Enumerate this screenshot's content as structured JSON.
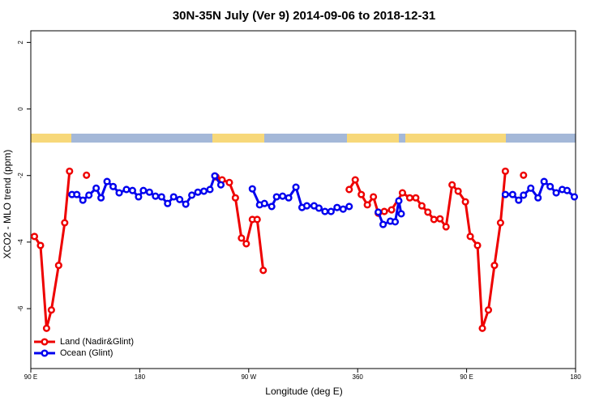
{
  "chart_data": {
    "type": "line",
    "title": "30N-35N July (Ver 9)   2014-09-06 to 2018-12-31",
    "x_label": "Longitude (deg E)",
    "y_label": "XCO2 - MLO trend (ppm)",
    "xlim": [
      90,
      540
    ],
    "ylim": [
      -7.8,
      2.35
    ],
    "xticks": [
      {
        "value": 90,
        "label": "90 E"
      },
      180,
      {
        "value": 270,
        "label": "90 W"
      },
      360,
      {
        "value": 450,
        "label": "90 E"
      },
      {
        "value": 540,
        "label": "180"
      }
    ],
    "yticks": [
      -6,
      -4,
      -2,
      0,
      2
    ],
    "legend": "bottom-left",
    "series": [
      {
        "name": "Land (Nadir&Glint)",
        "color": "#ee0000",
        "x": [
          93,
          98,
          103,
          107,
          113,
          118,
          122,
          null,
          136,
          null,
          243,
          248,
          254,
          259,
          264,
          268,
          273,
          277,
          282,
          null,
          353,
          358,
          363,
          368,
          373,
          377,
          382,
          388,
          397,
          403,
          408,
          413,
          418,
          423,
          428,
          433,
          438,
          443,
          449,
          453,
          459,
          463,
          468,
          473,
          478,
          482,
          null,
          497
        ],
        "values": [
          -3.83,
          -4.1,
          -6.59,
          -6.04,
          -4.7,
          -3.42,
          -1.87,
          null,
          -1.99,
          null,
          -2.04,
          -2.13,
          -2.21,
          -2.67,
          -3.88,
          -4.05,
          -3.32,
          -3.32,
          -4.85,
          null,
          -2.42,
          -2.13,
          -2.57,
          -2.88,
          -2.64,
          -3.13,
          -3.08,
          -3.03,
          -2.52,
          -2.67,
          -2.67,
          -2.91,
          -3.1,
          -3.32,
          -3.3,
          -3.54,
          -2.28,
          -2.47,
          -2.79,
          -3.83,
          -4.1,
          -6.59,
          -6.04,
          -4.7,
          -3.42,
          -1.87,
          null,
          -1.99
        ]
      },
      {
        "name": "Ocean (Glint)",
        "color": "#0000ee",
        "x": [
          124,
          128,
          133,
          138,
          144,
          148,
          153,
          158,
          163,
          169,
          174,
          179,
          183,
          188,
          193,
          198,
          203,
          208,
          213,
          218,
          223,
          228,
          233,
          238,
          242,
          247,
          null,
          273,
          279,
          283,
          289,
          293,
          298,
          303,
          309,
          314,
          318,
          324,
          328,
          333,
          338,
          343,
          348,
          353,
          null,
          377,
          381,
          387,
          391,
          394,
          396,
          null,
          482,
          488,
          493,
          497,
          503,
          509,
          514,
          519,
          524,
          529,
          533,
          539
        ],
        "values": [
          -2.57,
          -2.57,
          -2.74,
          -2.59,
          -2.38,
          -2.67,
          -2.18,
          -2.33,
          -2.52,
          -2.42,
          -2.45,
          -2.64,
          -2.45,
          -2.5,
          -2.62,
          -2.64,
          -2.84,
          -2.64,
          -2.72,
          -2.86,
          -2.59,
          -2.5,
          -2.47,
          -2.42,
          -2.01,
          -2.28,
          null,
          -2.4,
          -2.88,
          -2.84,
          -2.93,
          -2.64,
          -2.62,
          -2.67,
          -2.35,
          -2.96,
          -2.91,
          -2.91,
          -2.98,
          -3.08,
          -3.08,
          -2.96,
          -3.01,
          -2.93,
          null,
          -3.1,
          -3.47,
          -3.37,
          -3.39,
          -2.76,
          -3.15,
          null,
          -2.57,
          -2.57,
          -2.74,
          -2.59,
          -2.38,
          -2.67,
          -2.18,
          -2.33,
          -2.52,
          -2.42,
          -2.45,
          -2.64
        ]
      }
    ]
  }
}
